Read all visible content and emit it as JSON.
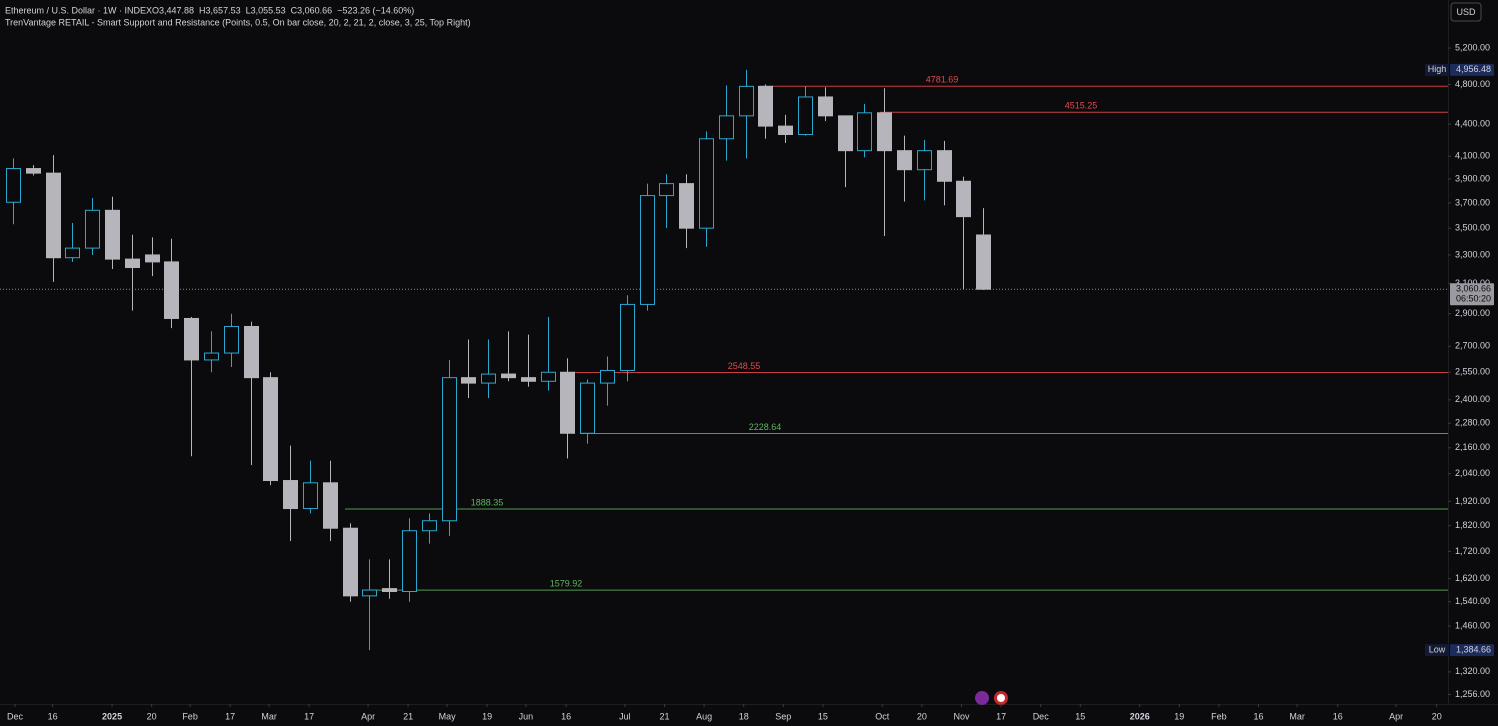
{
  "chart_data": {
    "type": "candlestick",
    "title": "Ethereum / U.S. Dollar · 1W · INDEX",
    "ohlc_text": [
      "O3,447.88",
      "H3,657.53",
      "L3,055.53",
      "C3,060.66",
      "−523.26 (−14.60%)"
    ],
    "subtitle": "TrenVantage RETAIL - Smart Support and Resistance (Points, 0.5, On bar close, 20, 2, 21, 2, close, 3, 25, Top Right)",
    "currency": "USD",
    "log_scale": true,
    "up_color": "#2ba8cf",
    "down_color": "#b5b5bb",
    "categories": [
      null,
      null,
      null,
      null,
      null,
      null,
      null,
      null,
      null,
      null,
      null,
      null,
      null,
      null,
      null,
      null,
      null,
      null,
      null,
      null,
      null,
      null,
      null,
      null,
      null,
      null,
      null,
      null,
      null,
      null,
      null,
      null,
      null,
      null,
      null,
      null,
      null,
      null,
      null,
      null,
      null,
      null,
      null,
      null,
      null,
      null,
      null,
      null,
      null,
      null
    ],
    "open": [
      3705,
      3990,
      3950,
      3280,
      3350,
      3640,
      3270,
      3300,
      3250,
      2870,
      2620,
      2660,
      2820,
      2520,
      2010,
      1890,
      2000,
      1810,
      1560,
      1585,
      1575,
      1800,
      1840,
      2520,
      2490,
      2540,
      2520,
      2500,
      2550,
      2230,
      2490,
      2560,
      2960,
      3760,
      3860,
      3500,
      4260,
      4480,
      4780,
      4380,
      4300,
      4670,
      4480,
      4150,
      4510,
      4150,
      3980,
      4150,
      3880,
      3447.88
    ],
    "high": [
      4080,
      4020,
      4110,
      3540,
      3740,
      3750,
      3450,
      3430,
      3420,
      2880,
      2790,
      2900,
      2850,
      2550,
      2170,
      2100,
      2100,
      1830,
      1690,
      1690,
      1850,
      1870,
      2620,
      2740,
      2740,
      2790,
      2770,
      2880,
      2630,
      2510,
      2640,
      3020,
      3860,
      3940,
      3940,
      4330,
      4790,
      4956.48,
      4800,
      4490,
      4780,
      4770,
      4480,
      4600,
      4760,
      4290,
      4250,
      4240,
      3920,
      3657.53
    ],
    "low": [
      3530,
      3930,
      3110,
      3250,
      3300,
      3200,
      2920,
      3150,
      2810,
      2120,
      2550,
      2580,
      2080,
      1990,
      1760,
      1870,
      1760,
      1540,
      1384.66,
      1550,
      1540,
      1750,
      1780,
      2410,
      2410,
      2500,
      2470,
      2450,
      2110,
      2180,
      2370,
      2500,
      2920,
      3500,
      3350,
      3360,
      4060,
      4080,
      4260,
      4220,
      4290,
      4430,
      3830,
      4090,
      3440,
      3710,
      3720,
      3680,
      3060,
      3055.53
    ],
    "close": [
      3990,
      3950,
      3280,
      3350,
      3640,
      3270,
      3210,
      3250,
      2870,
      2620,
      2660,
      2820,
      2520,
      2010,
      1890,
      2000,
      1810,
      1560,
      1580,
      1575,
      1800,
      1840,
      2520,
      2490,
      2540,
      2520,
      2500,
      2550,
      2230,
      2490,
      2560,
      2960,
      3760,
      3860,
      3500,
      4260,
      4480,
      4780,
      4380,
      4300,
      4670,
      4480,
      4150,
      4510,
      4150,
      3980,
      4150,
      3880,
      3590,
      3060.66
    ],
    "xlim": [
      -0.66,
      72.47
    ],
    "xticks": [
      {
        "value": 0.1,
        "label": "Dec"
      },
      {
        "value": 2,
        "label": "16"
      },
      {
        "value": 5,
        "label": "2025"
      },
      {
        "value": 7,
        "label": "20"
      },
      {
        "value": 8.94,
        "label": "Feb"
      },
      {
        "value": 10.96,
        "label": "17"
      },
      {
        "value": 12.93,
        "label": "Mar"
      },
      {
        "value": 14.95,
        "label": "17"
      },
      {
        "value": 17.93,
        "label": "Apr"
      },
      {
        "value": 19.95,
        "label": "21"
      },
      {
        "value": 21.92,
        "label": "May"
      },
      {
        "value": 23.94,
        "label": "19"
      },
      {
        "value": 25.9,
        "label": "Jun"
      },
      {
        "value": 27.93,
        "label": "16"
      },
      {
        "value": 30.9,
        "label": "Jul"
      },
      {
        "value": 32.9,
        "label": "21"
      },
      {
        "value": 34.9,
        "label": "Aug"
      },
      {
        "value": 36.9,
        "label": "18"
      },
      {
        "value": 38.9,
        "label": "Sep"
      },
      {
        "value": 40.9,
        "label": "15"
      },
      {
        "value": 43.9,
        "label": "Oct"
      },
      {
        "value": 45.9,
        "label": "20"
      },
      {
        "value": 47.9,
        "label": "Nov"
      },
      {
        "value": 49.9,
        "label": "17"
      },
      {
        "value": 51.9,
        "label": "Dec"
      },
      {
        "value": 53.9,
        "label": "15"
      },
      {
        "value": 56.9,
        "label": "2026"
      },
      {
        "value": 58.9,
        "label": "19"
      },
      {
        "value": 60.9,
        "label": "Feb"
      },
      {
        "value": 62.9,
        "label": "16"
      },
      {
        "value": 64.85,
        "label": "Mar"
      },
      {
        "value": 66.9,
        "label": "16"
      },
      {
        "value": 69.85,
        "label": "Apr"
      },
      {
        "value": 71.9,
        "label": "20"
      }
    ],
    "ylim": [
      1230,
      5779
    ],
    "yticks": [
      {
        "value": 5200,
        "label": "5,200.00"
      },
      {
        "value": 4800,
        "label": "4,800.00"
      },
      {
        "value": 4400,
        "label": "4,400.00"
      },
      {
        "value": 4100,
        "label": "4,100.00"
      },
      {
        "value": 3900,
        "label": "3,900.00"
      },
      {
        "value": 3700,
        "label": "3,700.00"
      },
      {
        "value": 3500,
        "label": "3,500.00"
      },
      {
        "value": 3300,
        "label": "3,300.00"
      },
      {
        "value": 3100,
        "label": "3,100.00"
      },
      {
        "value": 2900,
        "label": "2,900.00"
      },
      {
        "value": 2700,
        "label": "2,700.00"
      },
      {
        "value": 2550,
        "label": "2,550.00"
      },
      {
        "value": 2400,
        "label": "2,400.00"
      },
      {
        "value": 2280,
        "label": "2,280.00"
      },
      {
        "value": 2160,
        "label": "2,160.00"
      },
      {
        "value": 2040,
        "label": "2,040.00"
      },
      {
        "value": 1920,
        "label": "1,920.00"
      },
      {
        "value": 1820,
        "label": "1,820.00"
      },
      {
        "value": 1720,
        "label": "1,720.00"
      },
      {
        "value": 1620,
        "label": "1,620.00"
      },
      {
        "value": 1540,
        "label": "1,540.00"
      },
      {
        "value": 1460,
        "label": "1,460.00"
      },
      {
        "value": 1320,
        "label": "1,320.00"
      },
      {
        "value": 1256,
        "label": "1,256.00"
      }
    ],
    "levels": [
      {
        "value": 4781.69,
        "color": "#e5484d"
      },
      {
        "value": 4515.25,
        "color": "#e5484d"
      },
      {
        "value": 2548.55,
        "color": "#e5484d"
      },
      {
        "value": 2228.64,
        "color": "#5fb55f"
      },
      {
        "value": 1888.35,
        "color": "#5fb55f"
      },
      {
        "value": 1579.92,
        "color": "#5fb55f"
      }
    ],
    "markers": [
      {
        "name": "High",
        "value": 4956.48,
        "value_label": "4,956.48"
      },
      {
        "name": "Low",
        "value": 1384.66,
        "value_label": "1,384.66"
      }
    ],
    "last_price": 3060.66,
    "last_price_label": "3,060.66",
    "countdown": "06:50:20"
  }
}
